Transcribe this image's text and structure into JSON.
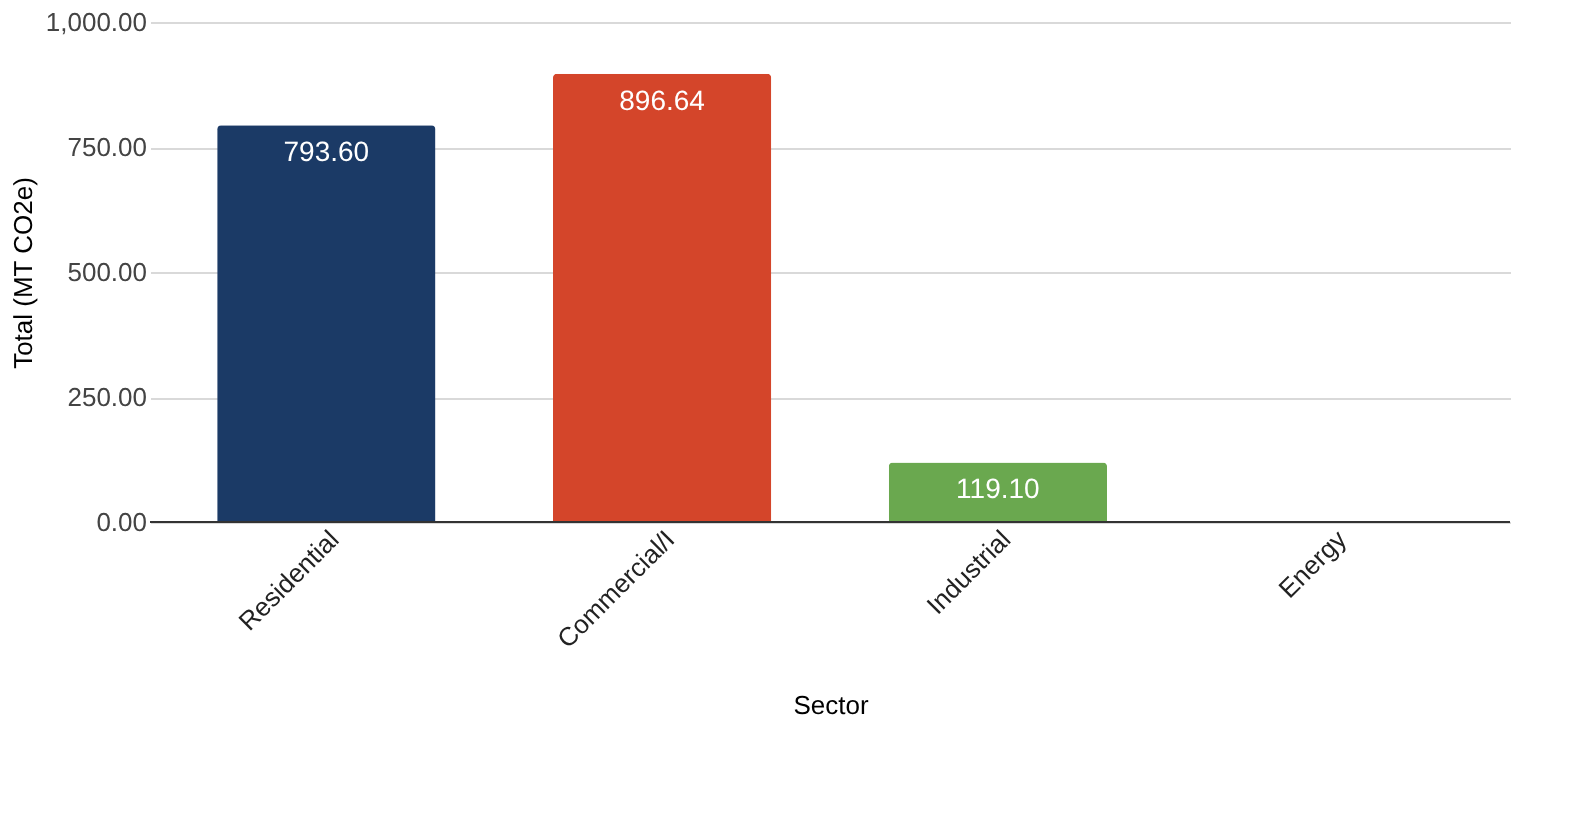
{
  "chart_data": {
    "type": "bar",
    "xlabel": "Sector",
    "ylabel": "Total (MT CO2e)",
    "categories": [
      "Residential",
      "Commercial/I",
      "Industrial",
      "Energy"
    ],
    "values": [
      793.6,
      896.64,
      119.1,
      null
    ],
    "colors": [
      "#1b3a66",
      "#d4452a",
      "#6aa84f",
      "#999999"
    ],
    "value_labels": [
      "793.60",
      "896.64",
      "119.10",
      null
    ],
    "ylim": [
      0,
      1000
    ],
    "yticks": [
      {
        "value": 0,
        "label": "0.00"
      },
      {
        "value": 250,
        "label": "250.00"
      },
      {
        "value": 500,
        "label": "500.00"
      },
      {
        "value": 750,
        "label": "750.00"
      },
      {
        "value": 1000,
        "label": "1,000.00"
      }
    ],
    "grid": "y"
  }
}
